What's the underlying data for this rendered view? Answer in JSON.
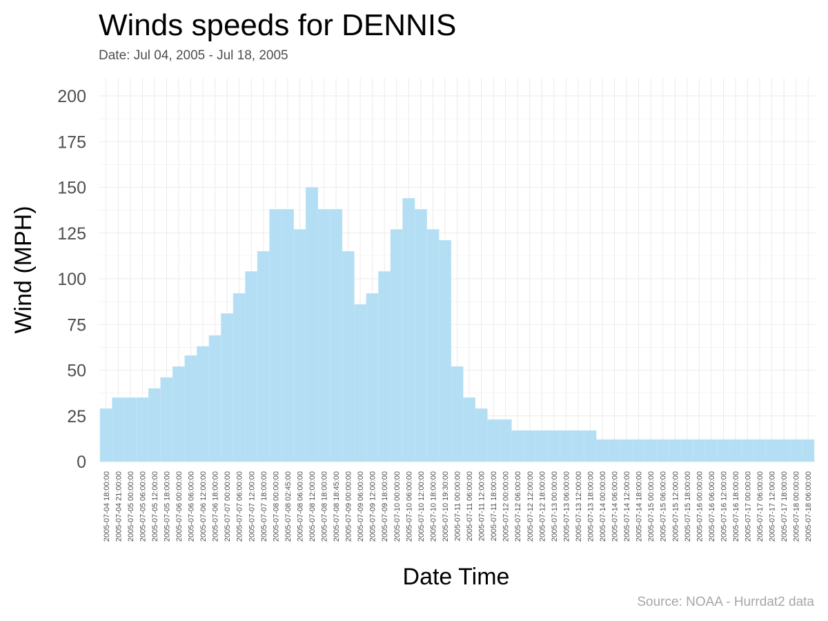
{
  "chart_data": {
    "type": "bar",
    "title": "Winds speeds for DENNIS",
    "subtitle": "Date:  Jul 04, 2005 - Jul 18, 2005",
    "caption": "Source: NOAA - Hurrdat2 data",
    "xlabel": "Date Time",
    "ylabel": "Wind (MPH)",
    "ylim": [
      0,
      210
    ],
    "yticks": [
      0,
      25,
      50,
      75,
      100,
      125,
      150,
      175,
      200
    ],
    "grid": true,
    "bar_color": "#b3def3",
    "categories": [
      "2005-07-04 18:00:00",
      "2005-07-04 21:00:00",
      "2005-07-05 00:00:00",
      "2005-07-05 06:00:00",
      "2005-07-05 12:00:00",
      "2005-07-05 18:00:00",
      "2005-07-06 00:00:00",
      "2005-07-06 06:00:00",
      "2005-07-06 12:00:00",
      "2005-07-06 18:00:00",
      "2005-07-07 00:00:00",
      "2005-07-07 06:00:00",
      "2005-07-07 12:00:00",
      "2005-07-07 18:00:00",
      "2005-07-08 00:00:00",
      "2005-07-08 02:45:00",
      "2005-07-08 06:00:00",
      "2005-07-08 12:00:00",
      "2005-07-08 18:00:00",
      "2005-07-08 18:45:00",
      "2005-07-09 00:00:00",
      "2005-07-09 06:00:00",
      "2005-07-09 12:00:00",
      "2005-07-09 18:00:00",
      "2005-07-10 00:00:00",
      "2005-07-10 06:00:00",
      "2005-07-10 12:00:00",
      "2005-07-10 18:00:00",
      "2005-07-10 19:30:00",
      "2005-07-11 00:00:00",
      "2005-07-11 06:00:00",
      "2005-07-11 12:00:00",
      "2005-07-11 18:00:00",
      "2005-07-12 00:00:00",
      "2005-07-12 06:00:00",
      "2005-07-12 12:00:00",
      "2005-07-12 18:00:00",
      "2005-07-13 00:00:00",
      "2005-07-13 06:00:00",
      "2005-07-13 12:00:00",
      "2005-07-13 18:00:00",
      "2005-07-14 00:00:00",
      "2005-07-14 06:00:00",
      "2005-07-14 12:00:00",
      "2005-07-14 18:00:00",
      "2005-07-15 00:00:00",
      "2005-07-15 06:00:00",
      "2005-07-15 12:00:00",
      "2005-07-15 18:00:00",
      "2005-07-16 00:00:00",
      "2005-07-16 06:00:00",
      "2005-07-16 12:00:00",
      "2005-07-16 18:00:00",
      "2005-07-17 00:00:00",
      "2005-07-17 06:00:00",
      "2005-07-17 12:00:00",
      "2005-07-17 18:00:00",
      "2005-07-18 00:00:00",
      "2005-07-18 06:00:00"
    ],
    "values": [
      29,
      35,
      35,
      35,
      40,
      46,
      52,
      58,
      63,
      69,
      81,
      92,
      104,
      115,
      138,
      138,
      127,
      150,
      138,
      138,
      115,
      86,
      92,
      104,
      127,
      144,
      138,
      127,
      121,
      52,
      35,
      29,
      23,
      23,
      17,
      17,
      17,
      17,
      17,
      17,
      17,
      12,
      12,
      12,
      12,
      12,
      12,
      12,
      12,
      12,
      12,
      12,
      12,
      12,
      12,
      12,
      12,
      12,
      12
    ]
  }
}
